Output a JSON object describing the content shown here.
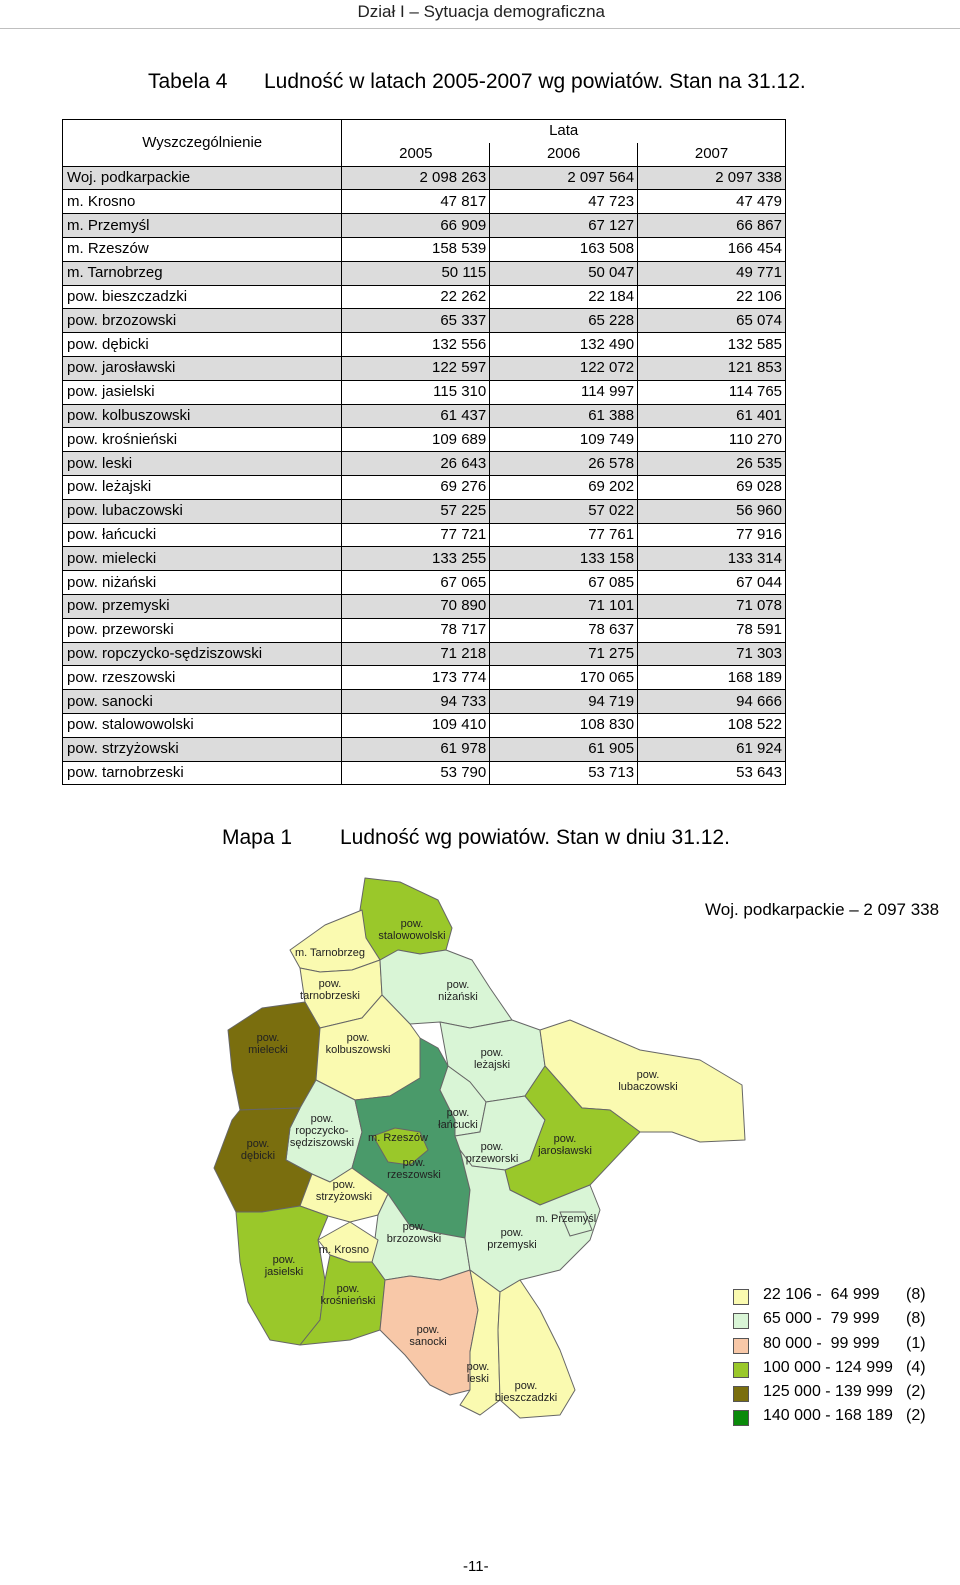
{
  "header": {
    "section": "Dział I – Sytuacja demograficzna"
  },
  "table_title": {
    "label": "Tabela 4",
    "text": "Ludność w latach 2005-2007 wg powiatów. Stan na 31.12."
  },
  "table": {
    "spec_header": "Wyszczególnienie",
    "group_header": "Lata",
    "years": [
      "2005",
      "2006",
      "2007"
    ],
    "rows": [
      {
        "name": "Woj. podkarpackie",
        "values": [
          "2 098 263",
          "2 097 564",
          "2 097 338"
        ]
      },
      {
        "name": "m. Krosno",
        "values": [
          "47 817",
          "47 723",
          "47 479"
        ]
      },
      {
        "name": "m. Przemyśl",
        "values": [
          "66 909",
          "67 127",
          "66 867"
        ]
      },
      {
        "name": "m. Rzeszów",
        "values": [
          "158 539",
          "163 508",
          "166 454"
        ]
      },
      {
        "name": "m. Tarnobrzeg",
        "values": [
          "50 115",
          "50 047",
          "49 771"
        ]
      },
      {
        "name": "pow. bieszczadzki",
        "values": [
          "22 262",
          "22 184",
          "22 106"
        ]
      },
      {
        "name": "pow. brzozowski",
        "values": [
          "65 337",
          "65 228",
          "65 074"
        ]
      },
      {
        "name": "pow. dębicki",
        "values": [
          "132 556",
          "132 490",
          "132 585"
        ]
      },
      {
        "name": "pow. jarosławski",
        "values": [
          "122 597",
          "122 072",
          "121 853"
        ]
      },
      {
        "name": "pow. jasielski",
        "values": [
          "115 310",
          "114 997",
          "114 765"
        ]
      },
      {
        "name": "pow. kolbuszowski",
        "values": [
          "61 437",
          "61 388",
          "61 401"
        ]
      },
      {
        "name": "pow. krośnieński",
        "values": [
          "109 689",
          "109 749",
          "110 270"
        ]
      },
      {
        "name": "pow. leski",
        "values": [
          "26 643",
          "26 578",
          "26 535"
        ]
      },
      {
        "name": "pow. leżajski",
        "values": [
          "69 276",
          "69 202",
          "69 028"
        ]
      },
      {
        "name": "pow. lubaczowski",
        "values": [
          "57 225",
          "57 022",
          "56 960"
        ]
      },
      {
        "name": "pow. łańcucki",
        "values": [
          "77 721",
          "77 761",
          "77 916"
        ]
      },
      {
        "name": "pow. mielecki",
        "values": [
          "133 255",
          "133 158",
          "133 314"
        ]
      },
      {
        "name": "pow. niżański",
        "values": [
          "67 065",
          "67 085",
          "67 044"
        ]
      },
      {
        "name": "pow. przemyski",
        "values": [
          "70 890",
          "71 101",
          "71 078"
        ]
      },
      {
        "name": "pow. przeworski",
        "values": [
          "78 717",
          "78 637",
          "78 591"
        ]
      },
      {
        "name": "pow. ropczycko-sędziszowski",
        "values": [
          "71 218",
          "71 275",
          "71 303"
        ]
      },
      {
        "name": "pow. rzeszowski",
        "values": [
          "173 774",
          "170 065",
          "168 189"
        ]
      },
      {
        "name": "pow. sanocki",
        "values": [
          "94 733",
          "94 719",
          "94 666"
        ]
      },
      {
        "name": "pow. stalowowolski",
        "values": [
          "109 410",
          "108 830",
          "108 522"
        ]
      },
      {
        "name": "pow. strzyżowski",
        "values": [
          "61 978",
          "61 905",
          "61 924"
        ]
      },
      {
        "name": "pow. tarnobrzeski",
        "values": [
          "53 790",
          "53 713",
          "53 643"
        ]
      }
    ]
  },
  "map_title": {
    "label": "Mapa 1",
    "text": "Ludność wg powiatów. Stan w dniu 31.12."
  },
  "map": {
    "total": "Woj. podkarpackie – 2 097 338",
    "colors": {
      "c1": "#fafab0",
      "c2": "#d9f5d6",
      "c3": "#f8c8a8",
      "c4": "#9ac82a",
      "c5": "#7a6e0e",
      "c6": "#4a9a6a"
    },
    "labels": {
      "stalowowolski": [
        "pow.",
        "stalowowolski"
      ],
      "tarnobrzeg": [
        "m. Tarnobrzeg"
      ],
      "tarnobrzeski": [
        "pow.",
        "tarnobrzeski"
      ],
      "nizanski": [
        "pow.",
        "niżański"
      ],
      "mielecki": [
        "pow.",
        "mielecki"
      ],
      "kolbuszowski": [
        "pow.",
        "kolbuszowski"
      ],
      "lezajski": [
        "pow.",
        "leżajski"
      ],
      "lubaczowski": [
        "pow.",
        "lubaczowski"
      ],
      "ropczycko": [
        "pow.",
        "ropczycko-",
        "sędziszowski"
      ],
      "debicki": [
        "pow.",
        "dębicki"
      ],
      "rzeszow": [
        "m. Rzeszów"
      ],
      "lancucki": [
        "pow.",
        "łańcucki"
      ],
      "przeworski": [
        "pow.",
        "przeworski"
      ],
      "jaroslawski": [
        "pow.",
        "jarosławski"
      ],
      "rzeszowski": [
        "pow.",
        "rzeszowski"
      ],
      "strzyzowski": [
        "pow.",
        "strzyżowski"
      ],
      "przemysl": [
        "m. Przemyśl"
      ],
      "brzozowski": [
        "pow.",
        "brzozowski"
      ],
      "przemyski": [
        "pow.",
        "przemyski"
      ],
      "krosno": [
        "m. Krosno"
      ],
      "jasielski": [
        "pow.",
        "jasielski"
      ],
      "krosnienski": [
        "pow.",
        "krośnieński"
      ],
      "sanocki": [
        "pow.",
        "sanocki"
      ],
      "leski": [
        "pow.",
        "leski"
      ],
      "bieszczadzki": [
        "pow.",
        "bieszczadzki"
      ]
    },
    "legend": [
      {
        "range": "22 106 -  64 999",
        "count": "(8)",
        "color": "#fafab0"
      },
      {
        "range": "65 000 -  79 999",
        "count": "(8)",
        "color": "#d9f5d6"
      },
      {
        "range": "80 000 -  99 999",
        "count": "(1)",
        "color": "#f8c8a8"
      },
      {
        "range": "100 000 - 124 999",
        "count": "(4)",
        "color": "#9ac82a"
      },
      {
        "range": "125 000 - 139 999",
        "count": "(2)",
        "color": "#7a6e0e"
      },
      {
        "range": "140 000 - 168 189",
        "count": "(2)",
        "color": "#0a8a0a"
      }
    ]
  },
  "footer": {
    "page": "-11-"
  }
}
